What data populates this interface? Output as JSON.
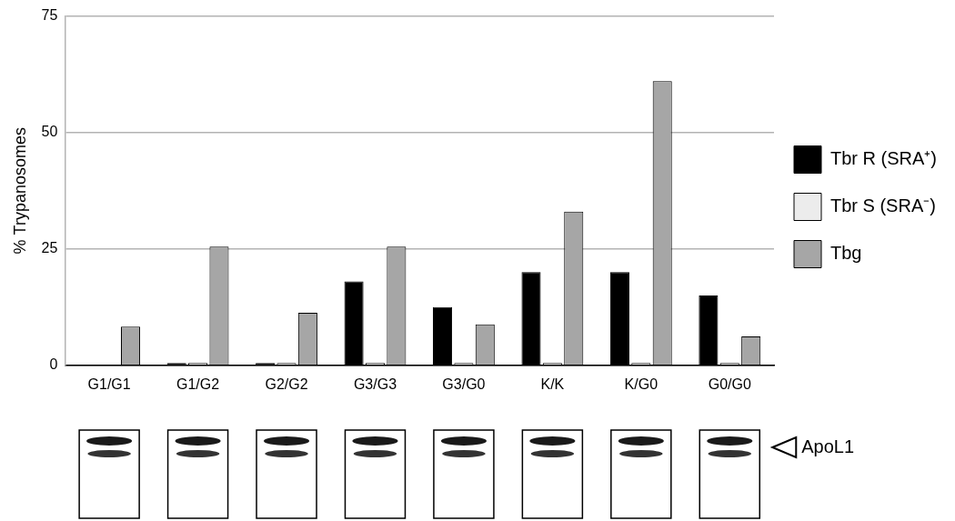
{
  "chart_data": {
    "type": "bar",
    "y_label": "% Trypanosomes",
    "categories": [
      "G1/G1",
      "G1/G2",
      "G2/G2",
      "G3/G3",
      "G3/G0",
      "K/K",
      "K/G0",
      "G0/G0"
    ],
    "series": [
      {
        "name": "Tbr R (SRA⁺)",
        "color": "#000000",
        "values": [
          0,
          0.5,
          0.5,
          18,
          12.5,
          20,
          20,
          15
        ]
      },
      {
        "name": "Tbr S (SRA⁻)",
        "color": "#ececec",
        "values": [
          0,
          0.5,
          0.5,
          0.5,
          0.5,
          0.5,
          0.5,
          0.5
        ]
      },
      {
        "name": "Tbg",
        "color": "#a6a6a6",
        "values": [
          8.3,
          25.5,
          11.3,
          25.5,
          8.8,
          33,
          61,
          6.2
        ]
      }
    ],
    "ylim": [
      0,
      75
    ],
    "yticks": [
      0,
      25,
      50,
      75
    ],
    "grid": true,
    "legend": "right",
    "annotation": "ApoL1"
  }
}
